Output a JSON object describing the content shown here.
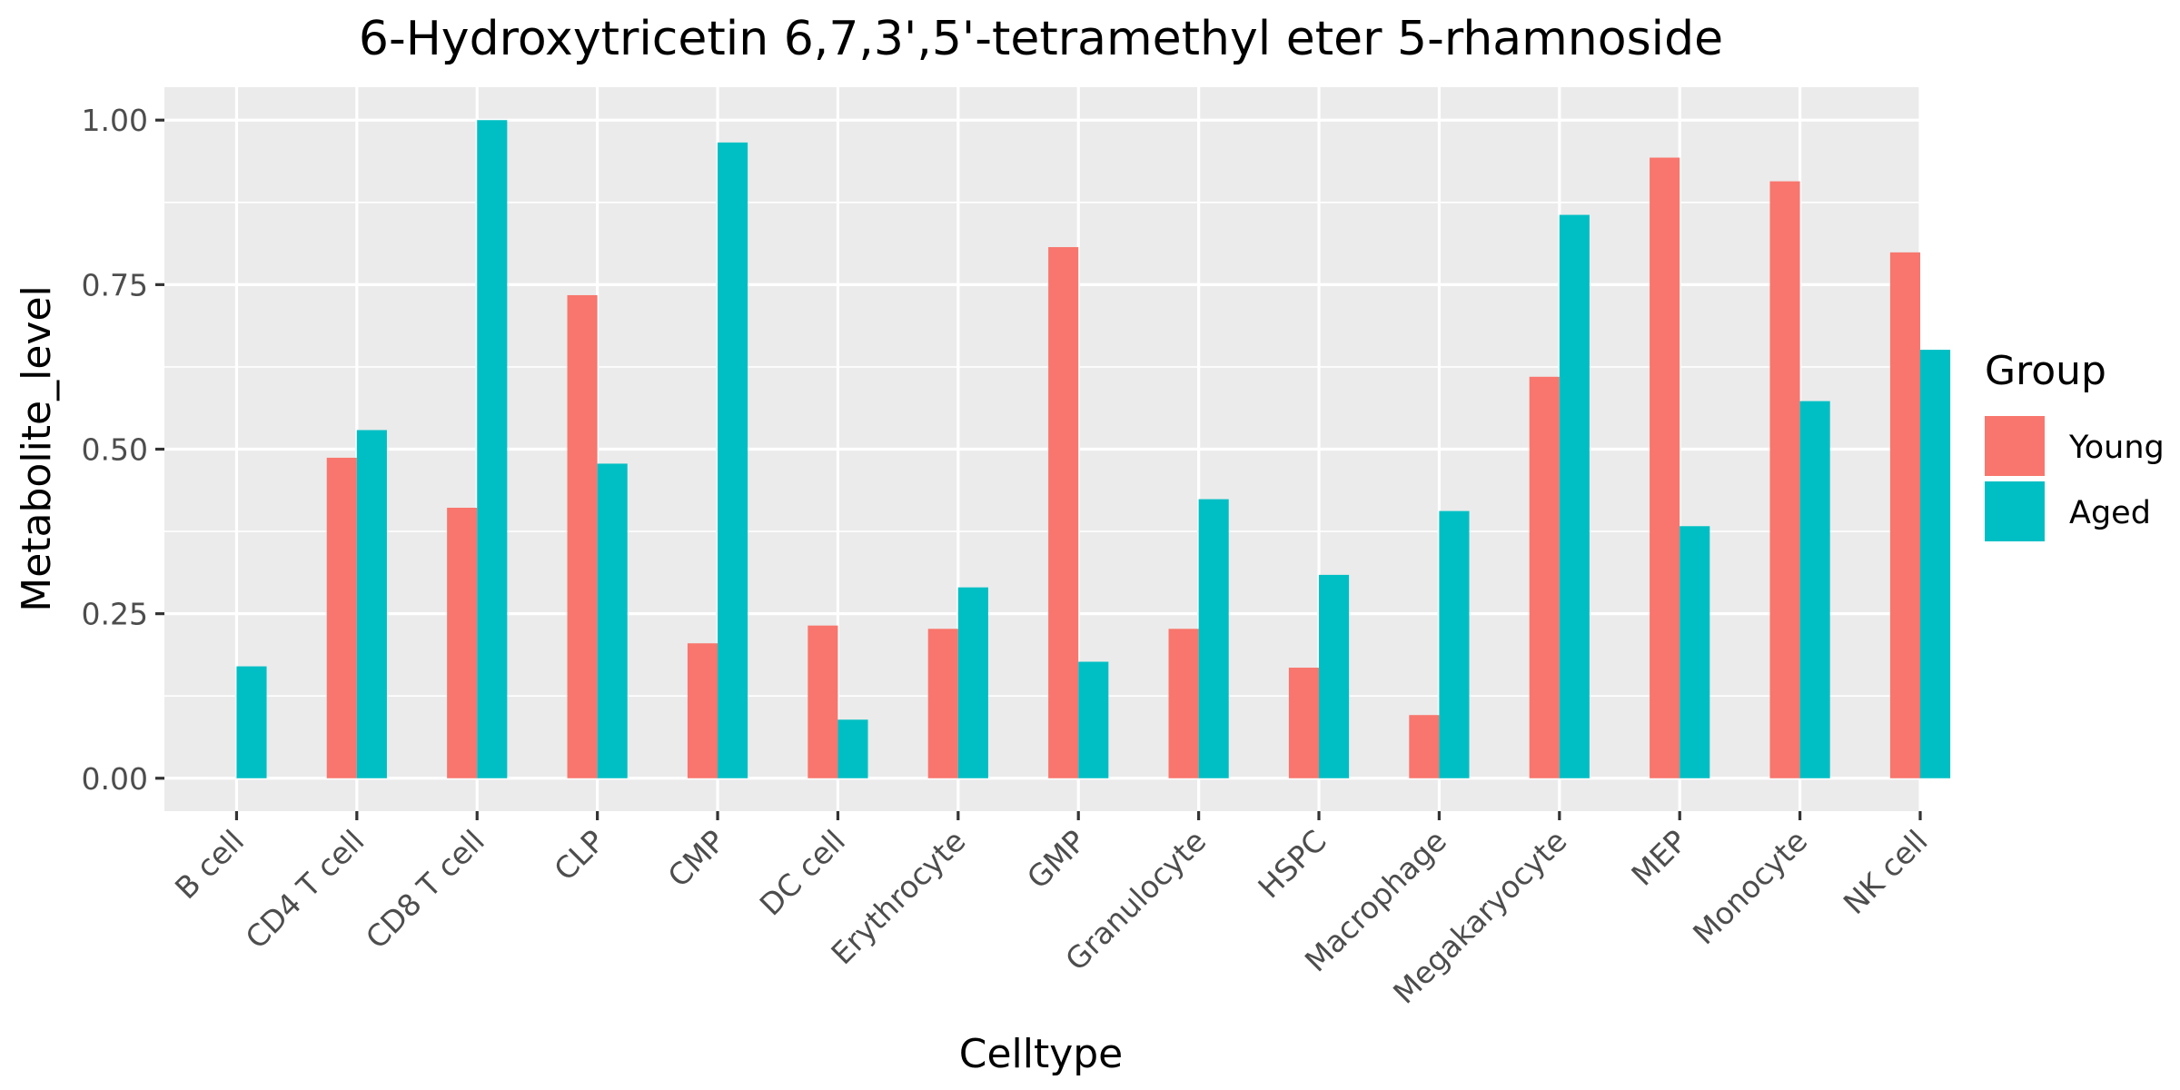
{
  "chart_data": {
    "type": "bar",
    "title": "6-Hydroxytricetin 6,7,3',5'-tetramethyl eter 5-rhamnoside",
    "xlabel": "Celltype",
    "ylabel": "Metabolite_level",
    "categories": [
      "B cell",
      "CD4 T cell",
      "CD8 T cell",
      "CLP",
      "CMP",
      "DC cell",
      "Erythrocyte",
      "GMP",
      "Granulocyte",
      "HSPC",
      "Macrophage",
      "Megakaryocyte",
      "MEP",
      "Monocyte",
      "NK cell"
    ],
    "series": [
      {
        "name": "Young",
        "color": "#F8766D",
        "values": [
          0.0,
          0.487,
          0.411,
          0.734,
          0.205,
          0.232,
          0.227,
          0.807,
          0.227,
          0.168,
          0.096,
          0.61,
          0.943,
          0.907,
          0.799
        ]
      },
      {
        "name": "Aged",
        "color": "#00BFC4",
        "values": [
          0.17,
          0.529,
          1.0,
          0.478,
          0.966,
          0.089,
          0.29,
          0.177,
          0.424,
          0.309,
          0.406,
          0.856,
          0.383,
          0.573,
          0.651
        ]
      }
    ],
    "ylim": [
      -0.05,
      1.05
    ],
    "yticks": [
      0.0,
      0.25,
      0.5,
      0.75,
      1.0
    ],
    "ytick_labels": [
      "0.00",
      "0.25",
      "0.50",
      "0.75",
      "1.00"
    ],
    "grid": true,
    "legend": {
      "title": "Group",
      "position": "right"
    },
    "panel_background": "#EBEBEB",
    "gridline_color": "#FFFFFF"
  }
}
